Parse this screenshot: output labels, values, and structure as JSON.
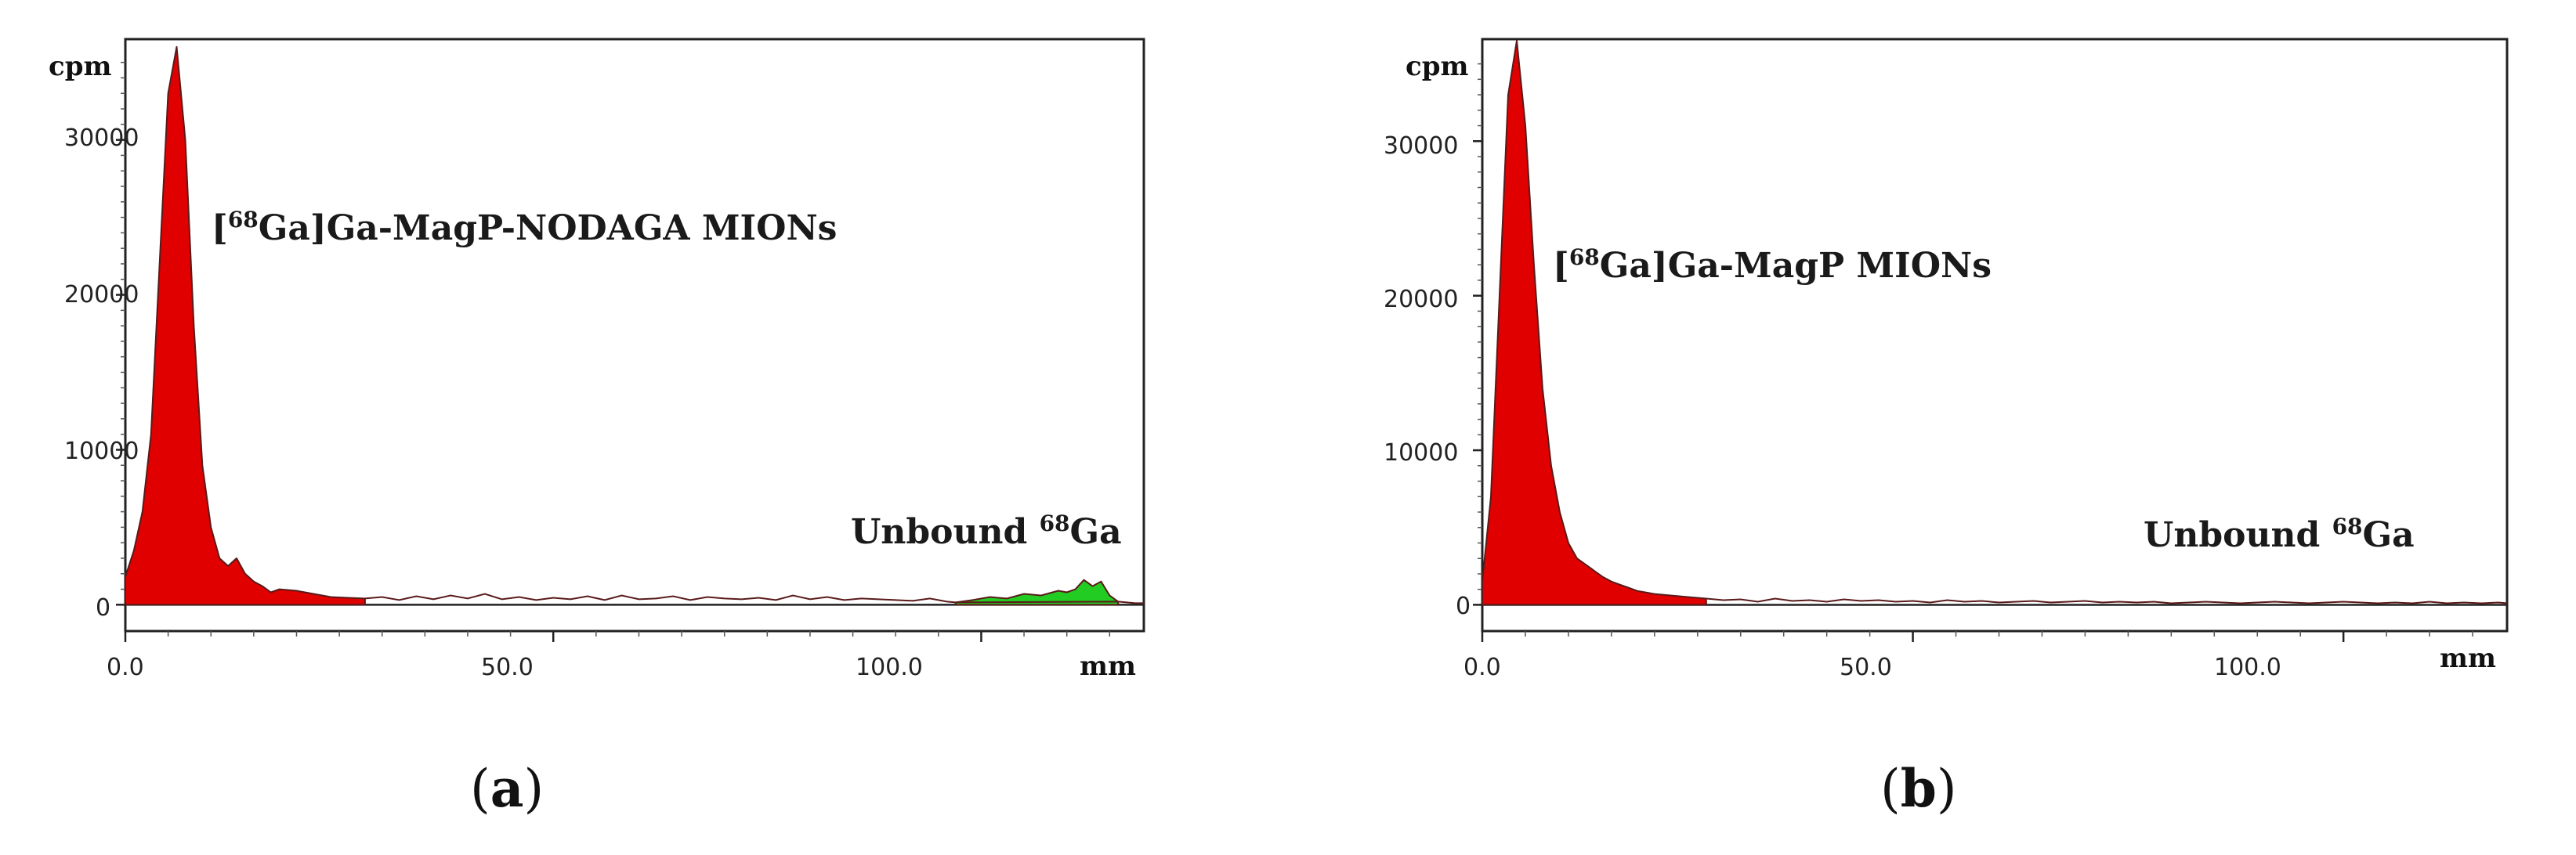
{
  "chart_data": [
    {
      "type": "area",
      "panel_label": "a",
      "xlabel": "mm",
      "ylabel": "cpm",
      "xlim": [
        0,
        119
      ],
      "ylim": [
        -1700,
        36500
      ],
      "x_ticks": [
        0,
        50,
        100
      ],
      "x_tick_labels": [
        "0.0",
        "50.0",
        "100.0"
      ],
      "y_ticks": [
        0,
        10000,
        20000,
        30000
      ],
      "y_tick_labels": [
        "0",
        "10000",
        "20000",
        "30000"
      ],
      "annotations": {
        "peak_sup": "68",
        "peak_label": "Ga]Ga-MagP-NODAGA MIONs",
        "unbound_label": "Unbound",
        "unbound_sup": "68",
        "unbound_element": "Ga"
      },
      "series": [
        {
          "name": "[68Ga]Ga-MagP-NODAGA MIONs",
          "color": "#e00000",
          "fill_range": [
            0,
            28
          ],
          "x": [
            0,
            1,
            2,
            3,
            4,
            5,
            6,
            7,
            8,
            9,
            10,
            11,
            12,
            13,
            14,
            15,
            16,
            17,
            18,
            20,
            22,
            24,
            26,
            28
          ],
          "y": [
            1800,
            3500,
            6000,
            11000,
            22000,
            33000,
            36000,
            30000,
            18000,
            9000,
            5000,
            3000,
            2500,
            3000,
            2000,
            1500,
            1200,
            800,
            1000,
            900,
            700,
            500,
            450,
            400
          ]
        },
        {
          "name": "Unbound 68Ga",
          "color": "#22cc22",
          "fill_range": [
            97,
            116
          ],
          "x": [
            97,
            99,
            101,
            103,
            105,
            107,
            109,
            110,
            111,
            112,
            113,
            114,
            115,
            116
          ],
          "y": [
            150,
            300,
            500,
            400,
            700,
            600,
            900,
            800,
            1000,
            1600,
            1200,
            1500,
            600,
            200
          ]
        }
      ],
      "baseline": {
        "name": "tail",
        "x": [
          28,
          30,
          32,
          34,
          36,
          38,
          40,
          42,
          44,
          46,
          48,
          50,
          52,
          54,
          56,
          58,
          60,
          62,
          64,
          66,
          68,
          70,
          72,
          74,
          76,
          78,
          80,
          82,
          84,
          86,
          88,
          90,
          92,
          94,
          96,
          97,
          116,
          117,
          118,
          119
        ],
        "y": [
          400,
          500,
          300,
          550,
          350,
          600,
          400,
          700,
          350,
          500,
          300,
          450,
          350,
          550,
          300,
          600,
          350,
          400,
          550,
          300,
          500,
          400,
          350,
          450,
          300,
          600,
          350,
          500,
          300,
          400,
          350,
          300,
          250,
          400,
          200,
          150,
          200,
          150,
          100,
          100
        ]
      }
    },
    {
      "type": "area",
      "panel_label": "b",
      "xlabel": "mm",
      "ylabel": "cpm",
      "xlim": [
        0,
        119
      ],
      "ylim": [
        -1700,
        36600
      ],
      "x_ticks": [
        0,
        50,
        100
      ],
      "x_tick_labels": [
        "0.0",
        "50.0",
        "100.0"
      ],
      "y_ticks": [
        0,
        10000,
        20000,
        30000
      ],
      "y_tick_labels": [
        "0",
        "10000",
        "20000",
        "30000"
      ],
      "annotations": {
        "peak_sup": "68",
        "peak_label": "Ga]Ga-MagP MIONs",
        "unbound_label": "Unbound",
        "unbound_sup": "68",
        "unbound_element": "Ga"
      },
      "series": [
        {
          "name": "[68Ga]Ga-MagP MIONs",
          "color": "#e00000",
          "fill_range": [
            0,
            26
          ],
          "x": [
            0,
            1,
            2,
            3,
            4,
            5,
            6,
            7,
            8,
            9,
            10,
            11,
            12,
            13,
            14,
            15,
            16,
            17,
            18,
            20,
            22,
            24,
            26
          ],
          "y": [
            1500,
            7000,
            20000,
            33000,
            36500,
            31000,
            22000,
            14000,
            9000,
            6000,
            4000,
            3000,
            2600,
            2200,
            1800,
            1500,
            1300,
            1100,
            900,
            700,
            600,
            500,
            400
          ]
        }
      ],
      "baseline": {
        "name": "tail",
        "x": [
          26,
          28,
          30,
          32,
          34,
          36,
          38,
          40,
          42,
          44,
          46,
          48,
          50,
          52,
          54,
          56,
          58,
          60,
          62,
          64,
          66,
          68,
          70,
          72,
          74,
          76,
          78,
          80,
          82,
          84,
          86,
          88,
          90,
          92,
          94,
          96,
          98,
          100,
          102,
          104,
          106,
          108,
          110,
          112,
          114,
          116,
          118,
          119
        ],
        "y": [
          400,
          300,
          350,
          200,
          400,
          250,
          300,
          200,
          350,
          250,
          300,
          200,
          250,
          150,
          300,
          200,
          250,
          150,
          200,
          250,
          150,
          200,
          250,
          150,
          200,
          150,
          200,
          100,
          150,
          200,
          150,
          100,
          150,
          200,
          150,
          100,
          150,
          200,
          150,
          100,
          150,
          100,
          200,
          100,
          150,
          100,
          150,
          100
        ]
      }
    }
  ],
  "captions": [
    {
      "open": "(",
      "letter": "a",
      "close": ")"
    },
    {
      "open": "(",
      "letter": "b",
      "close": ")"
    }
  ],
  "colors": {
    "red_fill": "#e00000",
    "green_fill": "#22cc22",
    "outline": "#5a1a1a",
    "axis": "#222222"
  }
}
